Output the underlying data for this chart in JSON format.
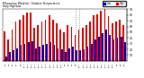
{
  "title": "Milwaukee Weather  Outdoor Temperature",
  "subtitle": "Daily High/Low",
  "high_color": "#dd0000",
  "low_color": "#0000bb",
  "background_color": "#ffffff",
  "ylim": [
    0,
    90
  ],
  "yticks": [
    10,
    20,
    30,
    40,
    50,
    60,
    70,
    80,
    90
  ],
  "highs": [
    52,
    38,
    55,
    68,
    72,
    80,
    84,
    85,
    58,
    62,
    68,
    72,
    80,
    72,
    65,
    55,
    50,
    62,
    60,
    45,
    55,
    58,
    62,
    68,
    80,
    82,
    88,
    90,
    78,
    65,
    68,
    72,
    62
  ],
  "lows": [
    8,
    15,
    18,
    22,
    28,
    30,
    32,
    35,
    22,
    25,
    28,
    30,
    32,
    28,
    22,
    20,
    15,
    22,
    25,
    18,
    18,
    20,
    25,
    30,
    38,
    42,
    48,
    55,
    45,
    38,
    40,
    42,
    32
  ],
  "x_labels": [
    "1/1",
    "1/3",
    "1/5",
    "1/7",
    "1/9",
    "1/11",
    "1/13",
    "1/15",
    "1/17",
    "1/19",
    "1/21",
    "1/23",
    "1/25",
    "1/27",
    "1/29",
    "1/31",
    "2/2",
    "2/4",
    "2/6",
    "2/8",
    "2/10",
    "2/12",
    "2/14",
    "2/16",
    "2/18",
    "2/20",
    "2/22",
    "2/24",
    "2/26",
    "2/28",
    "3/1",
    "3/3",
    "3/5"
  ],
  "dotted_line_x": 19.5,
  "bar_width": 0.42,
  "legend_high": "High",
  "legend_low": "Low"
}
